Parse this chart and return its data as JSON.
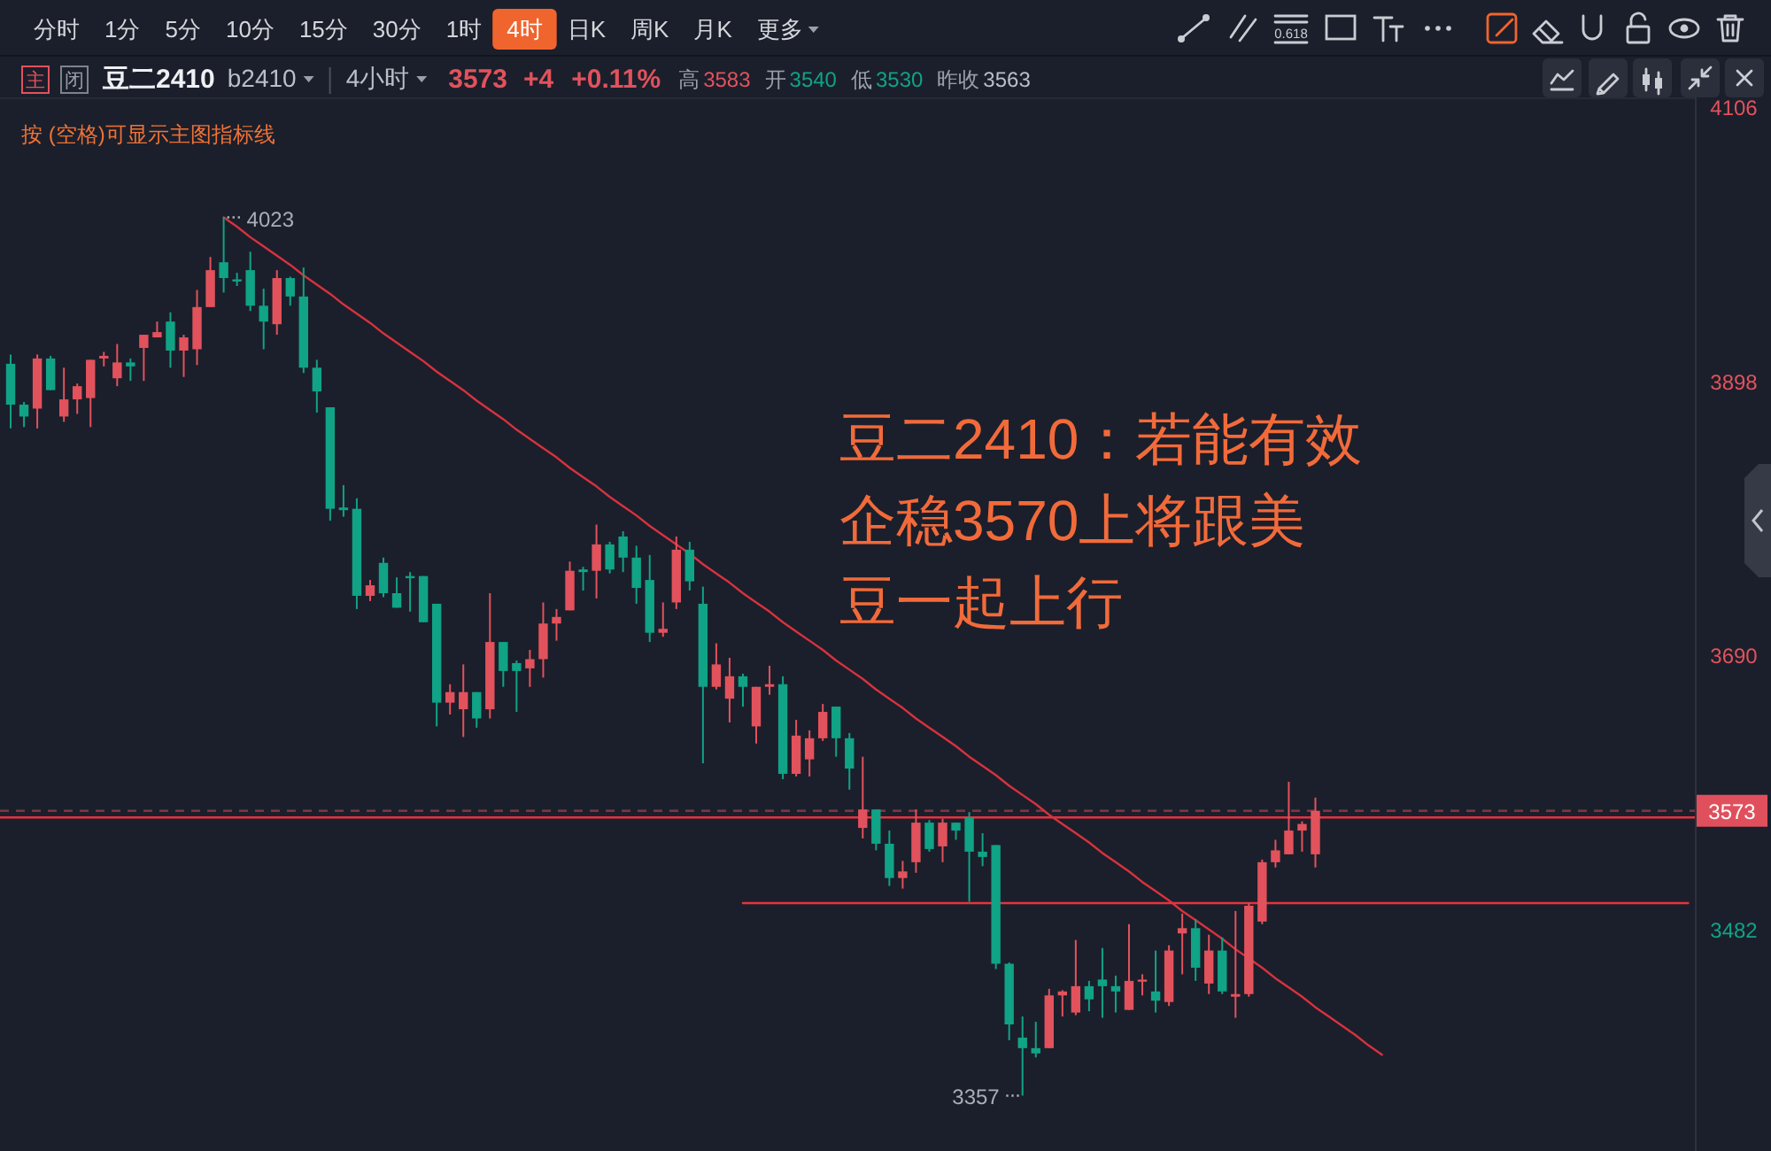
{
  "chart_data": {
    "type": "candlestick",
    "title": "豆二2410",
    "subtitle": "b2410",
    "categories": [
      null,
      null,
      null,
      null,
      null,
      null,
      null,
      null,
      null,
      null,
      null,
      null,
      null,
      null,
      null,
      null,
      null,
      null,
      null,
      null,
      null,
      null,
      null,
      null,
      null,
      null,
      null,
      null,
      null,
      null,
      null,
      null,
      null,
      null,
      null,
      null,
      null,
      null,
      null,
      null,
      null,
      null,
      null,
      null,
      null,
      null,
      null,
      null,
      null,
      null,
      null,
      null,
      null,
      null,
      null,
      null,
      null,
      null,
      null,
      null,
      null,
      null,
      null,
      null,
      null,
      null,
      null,
      null,
      null,
      null,
      null,
      null,
      null,
      null,
      null,
      null,
      null,
      null,
      null,
      null,
      null,
      null,
      null,
      null,
      null,
      null,
      null,
      null,
      null,
      null,
      null,
      null,
      null,
      null,
      null,
      null,
      null,
      null,
      null,
      null,
      null,
      null,
      null,
      null,
      null,
      null,
      null,
      null,
      null,
      null,
      null,
      null,
      null,
      null,
      null,
      null,
      null,
      null,
      null,
      null,
      null,
      null,
      null,
      null,
      null,
      null,
      null
    ],
    "ohlc": [
      [
        3912,
        3919,
        3863,
        3881
      ],
      [
        3881,
        3883,
        3864,
        3872
      ],
      [
        3878,
        3919,
        3863,
        3916
      ],
      [
        3916,
        3918,
        3892,
        3892
      ],
      [
        3872,
        3909,
        3868,
        3885
      ],
      [
        3885,
        3897,
        3874,
        3895
      ],
      [
        3886,
        3915,
        3864,
        3915
      ],
      [
        3916,
        3921,
        3910,
        3918
      ],
      [
        3901,
        3927,
        3895,
        3913
      ],
      [
        3913,
        3916,
        3899,
        3910
      ],
      [
        3924,
        3934,
        3899,
        3934
      ],
      [
        3932,
        3944,
        3932,
        3936
      ],
      [
        3944,
        3951,
        3909,
        3922
      ],
      [
        3922,
        3934,
        3902,
        3932
      ],
      [
        3923,
        3968,
        3911,
        3955
      ],
      [
        3955,
        3993,
        3955,
        3983
      ],
      [
        3989,
        4023,
        3966,
        3977
      ],
      [
        3976,
        3981,
        3971,
        3975
      ],
      [
        3983,
        3997,
        3952,
        3956
      ],
      [
        3956,
        3969,
        3923,
        3944
      ],
      [
        3942,
        3983,
        3934,
        3977
      ],
      [
        3977,
        3978,
        3956,
        3963
      ],
      [
        3963,
        3985,
        3905,
        3909
      ],
      [
        3909,
        3915,
        3875,
        3891
      ],
      [
        3879,
        3879,
        3793,
        3802
      ],
      [
        3803,
        3820,
        3796,
        3801
      ],
      [
        3802,
        3810,
        3726,
        3736
      ],
      [
        3736,
        3748,
        3732,
        3744
      ],
      [
        3761,
        3765,
        3735,
        3738
      ],
      [
        3738,
        3750,
        3727,
        3727
      ],
      [
        3751,
        3754,
        3724,
        3750
      ],
      [
        3751,
        3751,
        3716,
        3716
      ],
      [
        3730,
        3730,
        3637,
        3655
      ],
      [
        3655,
        3669,
        3646,
        3663
      ],
      [
        3650,
        3684,
        3629,
        3663
      ],
      [
        3663,
        3663,
        3636,
        3643
      ],
      [
        3650,
        3738,
        3643,
        3701
      ],
      [
        3701,
        3701,
        3667,
        3679
      ],
      [
        3685,
        3687,
        3648,
        3679
      ],
      [
        3681,
        3695,
        3667,
        3688
      ],
      [
        3688,
        3731,
        3674,
        3715
      ],
      [
        3715,
        3726,
        3702,
        3720
      ],
      [
        3725,
        3762,
        3725,
        3755
      ],
      [
        3756,
        3758,
        3740,
        3754
      ],
      [
        3755,
        3790,
        3734,
        3775
      ],
      [
        3775,
        3777,
        3753,
        3756
      ],
      [
        3781,
        3785,
        3754,
        3765
      ],
      [
        3765,
        3774,
        3730,
        3742
      ],
      [
        3748,
        3767,
        3701,
        3708
      ],
      [
        3708,
        3731,
        3705,
        3711
      ],
      [
        3731,
        3781,
        3726,
        3771
      ],
      [
        3771,
        3777,
        3740,
        3747
      ],
      [
        3730,
        3743,
        3609,
        3667
      ],
      [
        3667,
        3700,
        3665,
        3684
      ],
      [
        3658,
        3689,
        3640,
        3675
      ],
      [
        3675,
        3677,
        3652,
        3667
      ],
      [
        3637,
        3667,
        3624,
        3667
      ],
      [
        3667,
        3683,
        3661,
        3669
      ],
      [
        3669,
        3675,
        3597,
        3601
      ],
      [
        3601,
        3642,
        3599,
        3630
      ],
      [
        3612,
        3634,
        3599,
        3628
      ],
      [
        3628,
        3654,
        3626,
        3648
      ],
      [
        3652,
        3652,
        3614,
        3628
      ],
      [
        3628,
        3632,
        3589,
        3605
      ],
      [
        3560,
        3614,
        3552,
        3574
      ],
      [
        3574,
        3574,
        3543,
        3548
      ],
      [
        3548,
        3558,
        3516,
        3522
      ],
      [
        3522,
        3535,
        3514,
        3527
      ],
      [
        3534,
        3574,
        3526,
        3564
      ],
      [
        3564,
        3566,
        3542,
        3544
      ],
      [
        3546,
        3567,
        3534,
        3564
      ],
      [
        3564,
        3564,
        3551,
        3558
      ],
      [
        3568,
        3572,
        3504,
        3542
      ],
      [
        3542,
        3556,
        3531,
        3538
      ],
      [
        3547,
        3547,
        3453,
        3457
      ],
      [
        3457,
        3458,
        3399,
        3411
      ],
      [
        3401,
        3417,
        3357,
        3393
      ],
      [
        3393,
        3413,
        3386,
        3389
      ],
      [
        3393,
        3438,
        3393,
        3433
      ],
      [
        3433,
        3437,
        3417,
        3436
      ],
      [
        3420,
        3475,
        3418,
        3440
      ],
      [
        3440,
        3444,
        3421,
        3430
      ],
      [
        3445,
        3469,
        3416,
        3440
      ],
      [
        3440,
        3448,
        3420,
        3436
      ],
      [
        3422,
        3487,
        3422,
        3444
      ],
      [
        3444,
        3449,
        3433,
        3445
      ],
      [
        3436,
        3467,
        3420,
        3429
      ],
      [
        3428,
        3471,
        3425,
        3467
      ],
      [
        3480,
        3495,
        3449,
        3484
      ],
      [
        3484,
        3491,
        3444,
        3454
      ],
      [
        3442,
        3479,
        3434,
        3467
      ],
      [
        3467,
        3477,
        3434,
        3436
      ],
      [
        3432,
        3497,
        3416,
        3434
      ],
      [
        3434,
        3503,
        3432,
        3501
      ],
      [
        3489,
        3536,
        3487,
        3534
      ],
      [
        3534,
        3551,
        3530,
        3543
      ],
      [
        3540,
        3595,
        3540,
        3558
      ],
      [
        3558,
        3565,
        3542,
        3563
      ],
      [
        3540,
        3583,
        3530,
        3573
      ],
      null,
      null,
      null,
      null,
      null,
      null,
      null,
      null,
      null,
      null,
      null,
      null,
      null,
      null,
      null,
      null,
      null,
      null,
      null,
      null,
      null,
      null,
      null,
      null,
      null,
      null,
      null,
      null
    ],
    "colors": [
      "#10a386",
      "#10a386",
      "#e2525c",
      "#10a386",
      "#e2525c",
      "#e2525c",
      "#e2525c",
      "#e2525c",
      "#e2525c",
      "#10a386",
      "#e2525c",
      "#e2525c",
      "#10a386",
      "#e2525c",
      "#e2525c",
      "#e2525c",
      "#10a386",
      "#10a386",
      "#10a386",
      "#10a386",
      "#e2525c",
      "#10a386",
      "#10a386",
      "#10a386",
      "#10a386",
      "#10a386",
      "#10a386",
      "#e2525c",
      "#10a386",
      "#10a386",
      "#10a386",
      "#10a386",
      "#10a386",
      "#e2525c",
      "#e2525c",
      "#10a386",
      "#e2525c",
      "#10a386",
      "#10a386",
      "#e2525c",
      "#e2525c",
      "#e2525c",
      "#e2525c",
      "#10a386",
      "#e2525c",
      "#10a386",
      "#10a386",
      "#10a386",
      "#10a386",
      "#e2525c",
      "#e2525c",
      "#10a386",
      "#10a386",
      "#e2525c",
      "#e2525c",
      "#10a386",
      "#e2525c",
      "#e2525c",
      "#10a386",
      "#e2525c",
      "#e2525c",
      "#e2525c",
      "#10a386",
      "#10a386",
      "#e2525c",
      "#10a386",
      "#10a386",
      "#e2525c",
      "#e2525c",
      "#10a386",
      "#e2525c",
      "#10a386",
      "#10a386",
      "#10a386",
      "#10a386",
      "#10a386",
      "#10a386",
      "#10a386",
      "#e2525c",
      "#e2525c",
      "#e2525c",
      "#10a386",
      "#10a386",
      "#10a386",
      "#e2525c",
      "#e2525c",
      "#10a386",
      "#e2525c",
      "#e2525c",
      "#10a386",
      "#e2525c",
      "#10a386",
      "#e2525c",
      "#e2525c",
      "#e2525c",
      "#e2525c",
      "#e2525c",
      "#e2525c",
      "#e2525c",
      null,
      null,
      null,
      null,
      null,
      null,
      null,
      null,
      null,
      null,
      null,
      null,
      null,
      null,
      null,
      null,
      null,
      null,
      null,
      null,
      null,
      null,
      null,
      null,
      null,
      null,
      null,
      null
    ],
    "series": [
      {
        "type": "line",
        "color": "#d8323e",
        "values": [
          null,
          null,
          null,
          null,
          null,
          null,
          null,
          null,
          null,
          null,
          null,
          null,
          null,
          null,
          null,
          null,
          4023,
          4016,
          4008,
          4001,
          3994,
          3987,
          3979,
          3972,
          3965,
          3957,
          3950,
          3943,
          3935,
          3928,
          3921,
          3914,
          3906,
          3899,
          3892,
          3884,
          3877,
          3870,
          3862,
          3855,
          3848,
          3841,
          3833,
          3826,
          3819,
          3811,
          3804,
          3797,
          3789,
          3782,
          3775,
          3768,
          3760,
          3753,
          3746,
          3738,
          3731,
          3724,
          3716,
          3709,
          3702,
          3695,
          3687,
          3680,
          3673,
          3665,
          3658,
          3651,
          3643,
          3636,
          3629,
          3622,
          3614,
          3607,
          3600,
          3592,
          3585,
          3578,
          3570,
          3563,
          3556,
          3549,
          3541,
          3534,
          3527,
          3519,
          3512,
          3505,
          3497,
          3490,
          3483,
          3476,
          3468,
          3461,
          3454,
          3446,
          3439,
          3432,
          3424,
          3417,
          3410,
          3403,
          3395,
          3388,
          null,
          null,
          null,
          null,
          null,
          null,
          null,
          null,
          null,
          null,
          null,
          null,
          null,
          null,
          null,
          null,
          null,
          null,
          null,
          null,
          null,
          null,
          null
        ]
      },
      {
        "type": "line",
        "color": "#e8323e",
        "values": [
          null,
          null,
          null,
          null,
          null,
          null,
          null,
          null,
          null,
          null,
          null,
          null,
          null,
          null,
          null,
          null,
          null,
          null,
          null,
          null,
          null,
          null,
          null,
          null,
          null,
          null,
          null,
          null,
          null,
          null,
          null,
          null,
          null,
          null,
          null,
          null,
          null,
          null,
          null,
          null,
          null,
          null,
          null,
          null,
          null,
          null,
          null,
          null,
          null,
          null,
          null,
          null,
          null,
          null,
          null,
          3503,
          3503,
          3503,
          3503,
          3503,
          3503,
          3503,
          3503,
          3503,
          3503,
          3503,
          3503,
          3503,
          3503,
          3503,
          3503,
          3503,
          3503,
          3503,
          3503,
          3503,
          3503,
          3503,
          3503,
          3503,
          3503,
          3503,
          3503,
          3503,
          3503,
          3503,
          3503,
          3503,
          3503,
          3503,
          3503,
          3503,
          3503,
          3503,
          3503,
          3503,
          3503,
          3503,
          3503,
          3503,
          3503,
          3503,
          3503,
          3503,
          3503,
          3503,
          3503,
          3503,
          3503,
          3503,
          3503,
          3503,
          3503,
          3503,
          3503,
          3503,
          3503,
          3503,
          3503,
          3503,
          3503,
          3503,
          3503,
          3503,
          3503,
          3503,
          3503
        ]
      }
    ],
    "ref_lines": [
      {
        "axis": "y",
        "value": 3568,
        "color": "#e8323e"
      },
      {
        "axis": "y",
        "value": 3573,
        "label": "3573",
        "color": "#e0505c",
        "line_style": "dashed"
      }
    ],
    "ylim": [
      3315,
      4114
    ],
    "yticks": [
      3482,
      3690,
      3898,
      4106
    ],
    "tick_labels": "y",
    "annotations": [
      "分时 1分 5分 10分 15分 30分 1时 4时 日K 周K 月K 更多",
      "0.618",
      "主",
      "闭",
      "4小时",
      "3573",
      "+4",
      "+0.11%",
      "高",
      "3583",
      "开",
      "3540",
      "低",
      "3530",
      "昨收",
      "3563",
      "按 (空格)可显示主图指标线",
      "豆二2410：若能有效企稳3570上将跟美豆一起上行",
      "4023",
      "3357"
    ]
  }
}
